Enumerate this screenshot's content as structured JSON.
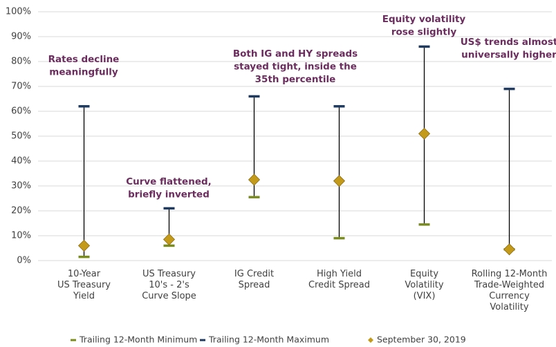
{
  "chart_data": {
    "type": "range",
    "categories": [
      "10-Year\nUS Treasury\nYield",
      "US Treasury\n10's - 2's\nCurve Slope",
      "IG Credit\nSpread",
      "High Yield\nCredit Spread",
      "Equity\nVolatility\n(VIX)",
      "Rolling 12-Month\nTrade-Weighted\nCurrency\nVolatility"
    ],
    "series": [
      {
        "name": "Trailing 12-Month Minimum",
        "color": "#7a8c1e",
        "values": [
          1.5,
          6,
          25.5,
          9,
          14.5,
          4.5
        ]
      },
      {
        "name": "Trailing 12-Month Maximum",
        "color": "#1f3a5f",
        "values": [
          62,
          21,
          66,
          62,
          86,
          69
        ]
      },
      {
        "name": "September 30, 2019",
        "color": "#c49a1a",
        "values": [
          6,
          8.5,
          32.5,
          32,
          51,
          4.5
        ]
      }
    ],
    "ylim": [
      0,
      100
    ],
    "yticks": [
      {
        "value": 0,
        "label": "0%"
      },
      {
        "value": 10,
        "label": "10%"
      },
      {
        "value": 20,
        "label": "20%"
      },
      {
        "value": 30,
        "label": "30%"
      },
      {
        "value": 40,
        "label": "40%"
      },
      {
        "value": 50,
        "label": "50%"
      },
      {
        "value": 60,
        "label": "60%"
      },
      {
        "value": 70,
        "label": "70%"
      },
      {
        "value": 80,
        "label": "80%"
      },
      {
        "value": 90,
        "label": "90%"
      },
      {
        "value": 100,
        "label": "100%"
      }
    ],
    "grid": true,
    "annotations": [
      "Rates decline\nmeaningfully",
      "Curve flattened,\nbriefly inverted",
      "Both IG and HY spreads\nstayed tight, inside the\n35th percentile",
      "Equity volatility\nrose slightly",
      "US$ trends almost\nuniversally higher"
    ]
  }
}
